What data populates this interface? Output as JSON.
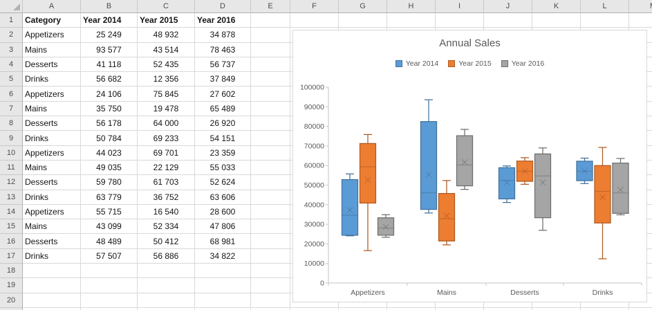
{
  "spreadsheet": {
    "column_headers": [
      "A",
      "B",
      "C",
      "D",
      "E",
      "F",
      "G",
      "H",
      "I",
      "J",
      "K",
      "L",
      "M"
    ],
    "visible_row_count": 21,
    "header_row": [
      "Category",
      "Year 2014",
      "Year 2015",
      "Year 2016"
    ],
    "data_rows": [
      [
        "Appetizers",
        "25 249",
        "48 932",
        "34 878"
      ],
      [
        "Mains",
        "93 577",
        "43 514",
        "78 463"
      ],
      [
        "Desserts",
        "41 118",
        "52 435",
        "56 737"
      ],
      [
        "Drinks",
        "56 682",
        "12 356",
        "37 849"
      ],
      [
        "Appetizers",
        "24 106",
        "75 845",
        "27 602"
      ],
      [
        "Mains",
        "35 750",
        "19 478",
        "65 489"
      ],
      [
        "Desserts",
        "56 178",
        "64 000",
        "26 920"
      ],
      [
        "Drinks",
        "50 784",
        "69 233",
        "54 151"
      ],
      [
        "Appetizers",
        "44 023",
        "69 701",
        "23 359"
      ],
      [
        "Mains",
        "49 035",
        "22 129",
        "55 033"
      ],
      [
        "Desserts",
        "59 780",
        "61 703",
        "52 624"
      ],
      [
        "Drinks",
        "63 779",
        "36 752",
        "63 606"
      ],
      [
        "Appetizers",
        "55 715",
        "16 540",
        "28 600"
      ],
      [
        "Mains",
        "43 099",
        "52 334",
        "47 806"
      ],
      [
        "Desserts",
        "48 489",
        "50 412",
        "68 981"
      ],
      [
        "Drinks",
        "57 507",
        "56 886",
        "34 822"
      ]
    ]
  },
  "chart": {
    "title": "Annual Sales"
  },
  "chart_data": {
    "type": "box",
    "title": "Annual Sales",
    "categories": [
      "Appetizers",
      "Mains",
      "Desserts",
      "Drinks"
    ],
    "ylim": [
      0,
      100000
    ],
    "ytick_step": 10000,
    "ytick_labels": [
      "0",
      "10000",
      "20000",
      "30000",
      "40000",
      "50000",
      "60000",
      "70000",
      "80000",
      "90000",
      "100000"
    ],
    "legend_position": "top",
    "gridlines": false,
    "series": [
      {
        "name": "Year 2014",
        "fill": "#5B9BD5",
        "line": "#41719C",
        "points_by_category": [
          [
            25249,
            24106,
            44023,
            55715
          ],
          [
            93577,
            35750,
            49035,
            43099
          ],
          [
            41118,
            56178,
            59780,
            48489
          ],
          [
            56682,
            50784,
            63779,
            57507
          ]
        ],
        "boxes": [
          {
            "min": 24106,
            "q1": 24392,
            "median": 34636,
            "mean": 37273,
            "q3": 52792,
            "max": 55715
          },
          {
            "min": 35750,
            "q1": 37587,
            "median": 46067,
            "mean": 55365,
            "q3": 82442,
            "max": 93577
          },
          {
            "min": 41118,
            "q1": 42961,
            "median": 52334,
            "mean": 51391,
            "q3": 58880,
            "max": 59780
          },
          {
            "min": 50784,
            "q1": 52259,
            "median": 57095,
            "mean": 57188,
            "q3": 62211,
            "max": 63779
          }
        ]
      },
      {
        "name": "Year 2015",
        "fill": "#ED7D31",
        "line": "#AE5A21",
        "points_by_category": [
          [
            48932,
            75845,
            69701,
            16540
          ],
          [
            43514,
            19478,
            22129,
            52334
          ],
          [
            52435,
            64000,
            61703,
            50412
          ],
          [
            12356,
            69233,
            36752,
            56886
          ]
        ],
        "boxes": [
          {
            "min": 16540,
            "q1": 40834,
            "median": 59317,
            "mean": 52755,
            "q3": 71237,
            "max": 75845
          },
          {
            "min": 19478,
            "q1": 21466,
            "median": 32822,
            "mean": 34364,
            "q3": 45719,
            "max": 52334
          },
          {
            "min": 50412,
            "q1": 51929,
            "median": 57069,
            "mean": 57138,
            "q3": 62277,
            "max": 64000
          },
          {
            "min": 12356,
            "q1": 30653,
            "median": 46819,
            "mean": 43807,
            "q3": 59973,
            "max": 69233
          }
        ]
      },
      {
        "name": "Year 2016",
        "fill": "#A5A5A5",
        "line": "#6E6E6E",
        "points_by_category": [
          [
            34878,
            27602,
            23359,
            28600
          ],
          [
            78463,
            65489,
            55033,
            47806
          ],
          [
            56737,
            26920,
            52624,
            68981
          ],
          [
            37849,
            54151,
            63606,
            34822
          ]
        ],
        "boxes": [
          {
            "min": 23359,
            "q1": 24420,
            "median": 28101,
            "mean": 28610,
            "q3": 33309,
            "max": 34878
          },
          {
            "min": 47806,
            "q1": 49613,
            "median": 60261,
            "mean": 61698,
            "q3": 75220,
            "max": 78463
          },
          {
            "min": 26920,
            "q1": 33346,
            "median": 54681,
            "mean": 51316,
            "q3": 65920,
            "max": 68981
          },
          {
            "min": 34822,
            "q1": 35579,
            "median": 46000,
            "mean": 47607,
            "q3": 61242,
            "max": 63606
          }
        ]
      }
    ]
  },
  "colors": {
    "header_bg": "#E7E7E7",
    "gridline": "#D9D9D9",
    "chart_border": "#D7D7D7",
    "chart_text": "#595959",
    "axis_line": "#C6C6C6"
  }
}
